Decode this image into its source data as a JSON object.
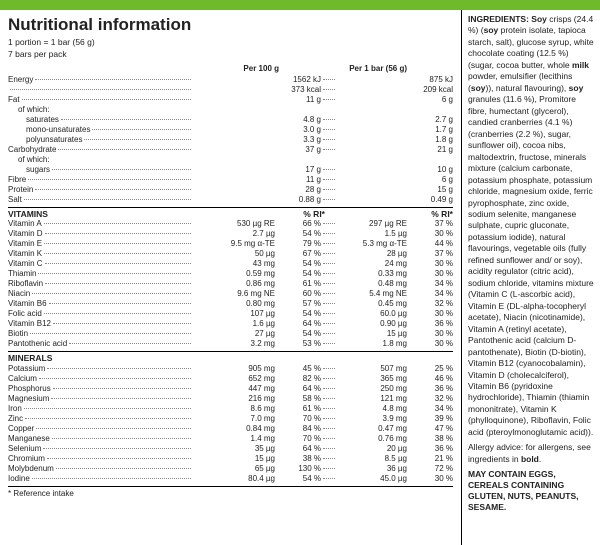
{
  "header": {
    "title": "Nutritional information",
    "portion": "1 portion = 1 bar (56 g)",
    "pack": "7 bars per pack",
    "col1": "Per 100 g",
    "col2": "Per 1 bar (56 g)",
    "ri": "% RI*",
    "footnote": "* Reference intake"
  },
  "basic": [
    {
      "l": "Energy",
      "v1": "1562 kJ",
      "v2": "875 kJ"
    },
    {
      "l": "",
      "v1": "373 kcal",
      "v2": "209 kcal"
    },
    {
      "l": "Fat",
      "v1": "11 g",
      "v2": "6 g"
    },
    {
      "l": "of which:",
      "v1": "",
      "v2": "",
      "plain": true,
      "indent": 1
    },
    {
      "l": "saturates",
      "v1": "4.8 g",
      "v2": "2.7 g",
      "indent": 2
    },
    {
      "l": "mono-unsaturates",
      "v1": "3.0 g",
      "v2": "1.7 g",
      "indent": 2
    },
    {
      "l": "polyunsaturates",
      "v1": "3.3 g",
      "v2": "1.8 g",
      "indent": 2
    },
    {
      "l": "Carbohydrate",
      "v1": "37 g",
      "v2": "21 g"
    },
    {
      "l": "of which:",
      "v1": "",
      "v2": "",
      "plain": true,
      "indent": 1
    },
    {
      "l": "sugars",
      "v1": "17 g",
      "v2": "10 g",
      "indent": 2
    },
    {
      "l": "Fibre",
      "v1": "11 g",
      "v2": "6 g"
    },
    {
      "l": "Protein",
      "v1": "28 g",
      "v2": "15 g"
    },
    {
      "l": "Salt",
      "v1": "0.88 g",
      "v2": "0.49 g"
    }
  ],
  "vitamins_label": "VITAMINS",
  "vitamins": [
    {
      "l": "Vitamin A",
      "v1": "530 µg RE",
      "r1": "66 %",
      "v2": "297 µg RE",
      "r2": "37 %"
    },
    {
      "l": "Vitamin D",
      "v1": "2.7 µg",
      "r1": "54 %",
      "v2": "1.5 µg",
      "r2": "30 %"
    },
    {
      "l": "Vitamin E",
      "v1": "9.5 mg α-TE",
      "r1": "79 %",
      "v2": "5.3 mg α-TE",
      "r2": "44 %"
    },
    {
      "l": "Vitamin K",
      "v1": "50 µg",
      "r1": "67 %",
      "v2": "28 µg",
      "r2": "37 %"
    },
    {
      "l": "Vitamin C",
      "v1": "43 mg",
      "r1": "54 %",
      "v2": "24 mg",
      "r2": "30 %"
    },
    {
      "l": "Thiamin",
      "v1": "0.59 mg",
      "r1": "54 %",
      "v2": "0.33 mg",
      "r2": "30 %"
    },
    {
      "l": "Riboflavin",
      "v1": "0.86 mg",
      "r1": "61 %",
      "v2": "0.48 mg",
      "r2": "34 %"
    },
    {
      "l": "Niacin",
      "v1": "9.6 mg NE",
      "r1": "60 %",
      "v2": "5.4 mg NE",
      "r2": "34 %"
    },
    {
      "l": "Vitamin B6",
      "v1": "0.80 mg",
      "r1": "57 %",
      "v2": "0.45 mg",
      "r2": "32 %"
    },
    {
      "l": "Folic acid",
      "v1": "107 µg",
      "r1": "54 %",
      "v2": "60.0 µg",
      "r2": "30 %"
    },
    {
      "l": "Vitamin B12",
      "v1": "1.6 µg",
      "r1": "64 %",
      "v2": "0.90 µg",
      "r2": "36 %"
    },
    {
      "l": "Biotin",
      "v1": "27 µg",
      "r1": "54 %",
      "v2": "15 µg",
      "r2": "30 %"
    },
    {
      "l": "Pantothenic acid",
      "v1": "3.2 mg",
      "r1": "53 %",
      "v2": "1.8 mg",
      "r2": "30 %"
    }
  ],
  "minerals_label": "MINERALS",
  "minerals": [
    {
      "l": "Potassium",
      "v1": "905 mg",
      "r1": "45 %",
      "v2": "507 mg",
      "r2": "25 %"
    },
    {
      "l": "Calcium",
      "v1": "652 mg",
      "r1": "82 %",
      "v2": "365 mg",
      "r2": "46 %"
    },
    {
      "l": "Phosphorus",
      "v1": "447 mg",
      "r1": "64 %",
      "v2": "250 mg",
      "r2": "36 %"
    },
    {
      "l": "Magnesium",
      "v1": "216 mg",
      "r1": "58 %",
      "v2": "121 mg",
      "r2": "32 %"
    },
    {
      "l": "Iron",
      "v1": "8.6 mg",
      "r1": "61 %",
      "v2": "4.8 mg",
      "r2": "34 %"
    },
    {
      "l": "Zinc",
      "v1": "7.0 mg",
      "r1": "70 %",
      "v2": "3.9 mg",
      "r2": "39 %"
    },
    {
      "l": "Copper",
      "v1": "0.84 mg",
      "r1": "84 %",
      "v2": "0.47 mg",
      "r2": "47 %"
    },
    {
      "l": "Manganese",
      "v1": "1.4 mg",
      "r1": "70 %",
      "v2": "0.76 mg",
      "r2": "38 %"
    },
    {
      "l": "Selenium",
      "v1": "35 µg",
      "r1": "64 %",
      "v2": "20 µg",
      "r2": "36 %"
    },
    {
      "l": "Chromium",
      "v1": "15 µg",
      "r1": "38 %",
      "v2": "8.5 µg",
      "r2": "21 %"
    },
    {
      "l": "Molybdenum",
      "v1": "65 µg",
      "r1": "130 %",
      "v2": "36 µg",
      "r2": "72 %"
    },
    {
      "l": "Iodine",
      "v1": "80.4 µg",
      "r1": "54 %",
      "v2": "45.0 µg",
      "r2": "30 %"
    }
  ],
  "ingredients": {
    "label": "INGREDIENTS:",
    "allergy_label": "Allergy advice: for allergens, see ingredients in",
    "bold_word": "bold",
    "may": "May contain eggs, cereals containing gluten, nuts, peanuts, sesame."
  }
}
